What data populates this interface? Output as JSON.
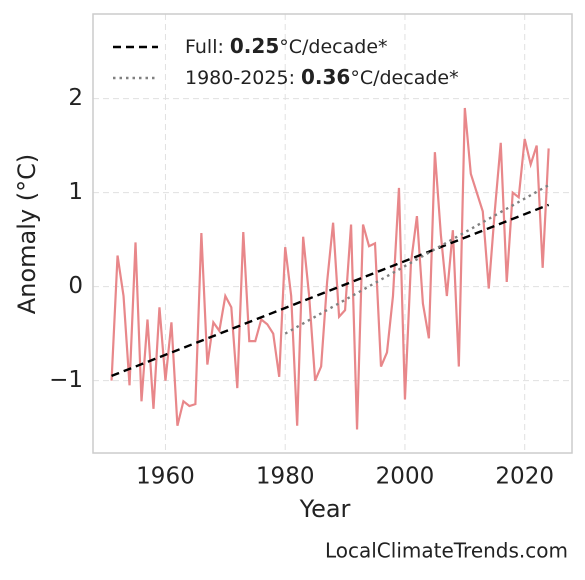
{
  "chart_data": {
    "type": "line",
    "xlabel": "Year",
    "ylabel": "Anomaly (°C)",
    "source": "LocalClimateTrends.com",
    "xlim": [
      1947.9,
      2027.9
    ],
    "ylim": [
      -1.77,
      2.9
    ],
    "xticks": [
      1960,
      1980,
      2000,
      2020
    ],
    "yticks": [
      {
        "value": -1,
        "label": "−1"
      },
      0,
      1,
      2
    ],
    "grid": true,
    "legend": "upper left",
    "series": [
      {
        "color": "#e8878a",
        "style": "solid",
        "x": [
          1951,
          1952,
          1953,
          1954,
          1955,
          1956,
          1957,
          1958,
          1959,
          1960,
          1961,
          1962,
          1963,
          1964,
          1965,
          1966,
          1967,
          1968,
          1969,
          1970,
          1971,
          1972,
          1973,
          1974,
          1975,
          1976,
          1977,
          1978,
          1979,
          1980,
          1981,
          1982,
          1983,
          1984,
          1985,
          1986,
          1987,
          1988,
          1989,
          1990,
          1991,
          1992,
          1993,
          1994,
          1995,
          1996,
          1997,
          1998,
          1999,
          2000,
          2001,
          2002,
          2003,
          2004,
          2005,
          2006,
          2007,
          2008,
          2009,
          2010,
          2011,
          2012,
          2013,
          2014,
          2015,
          2016,
          2017,
          2018,
          2019,
          2020,
          2021,
          2022,
          2023,
          2024
        ],
        "values": [
          -1.0,
          0.33,
          -0.1,
          -1.05,
          0.47,
          -1.22,
          -0.35,
          -1.3,
          -0.22,
          -1.0,
          -0.38,
          -1.48,
          -1.22,
          -1.27,
          -1.25,
          0.57,
          -0.83,
          -0.38,
          -0.47,
          -0.1,
          -0.22,
          -1.08,
          0.58,
          -0.58,
          -0.58,
          -0.35,
          -0.4,
          -0.5,
          -0.96,
          0.42,
          -0.1,
          -1.48,
          0.53,
          -0.1,
          -1.0,
          -0.85,
          0.05,
          0.68,
          -0.32,
          -0.25,
          0.66,
          -1.52,
          0.66,
          0.43,
          0.46,
          -0.85,
          -0.7,
          -0.1,
          1.05,
          -1.2,
          0.25,
          0.75,
          -0.18,
          -0.55,
          1.43,
          0.55,
          -0.1,
          0.6,
          -0.85,
          1.9,
          1.2,
          1.0,
          0.8,
          -0.02,
          0.8,
          1.53,
          0.05,
          1.0,
          0.95,
          1.57,
          1.3,
          1.5,
          0.2,
          1.47
        ]
      },
      {
        "color": "#000000",
        "style": "dashed",
        "legend_label": {
          "name": "Full:",
          "rate": 0.25,
          "unit": "°C/decade*"
        },
        "x": [
          1951,
          2024
        ],
        "values": [
          -0.95,
          0.87
        ]
      },
      {
        "color": "#808080",
        "style": "dotted",
        "legend_label": {
          "name": "1980-2025:",
          "rate": 0.36,
          "unit": "°C/decade*"
        },
        "x": [
          1980,
          2024
        ],
        "values": [
          -0.5,
          1.08
        ]
      }
    ]
  }
}
